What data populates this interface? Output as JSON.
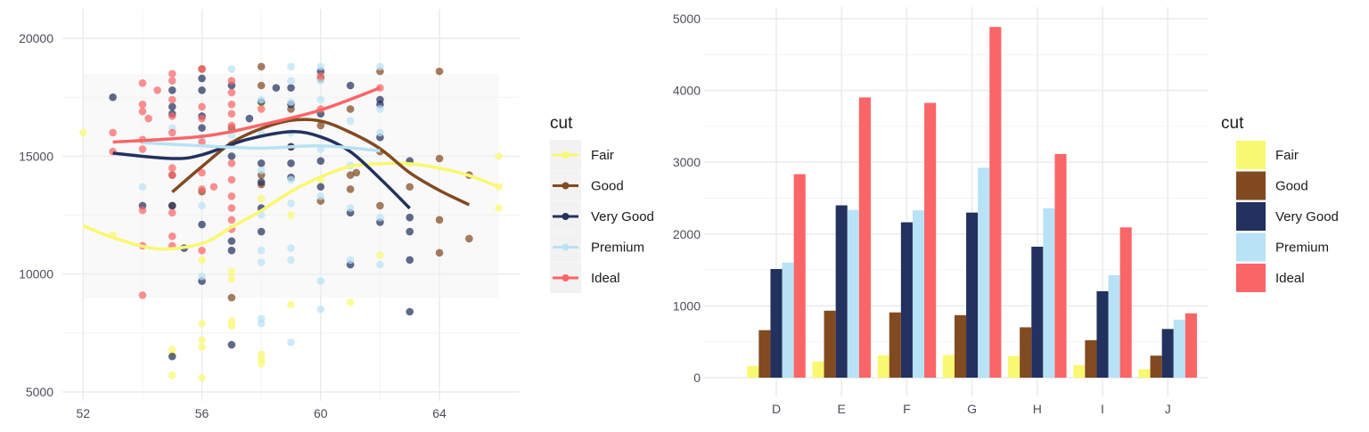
{
  "colors": {
    "Fair": "#F9F871",
    "Good": "#824A21",
    "Very Good": "#23315E",
    "Premium": "#B8E2F5",
    "Ideal": "#FA6567"
  },
  "chart_data": [
    {
      "type": "scatter",
      "title": "",
      "xlabel": "",
      "ylabel": "",
      "xlim": [
        51.3,
        66.7
      ],
      "ylim": [
        4620,
        21250
      ],
      "x_ticks": [
        52,
        56,
        60,
        64
      ],
      "y_ticks": [
        5000,
        10000,
        15000,
        20000
      ],
      "grid": true,
      "legend": {
        "title": "cut",
        "position": "right",
        "entries": [
          "Fair",
          "Good",
          "Very Good",
          "Premium",
          "Ideal"
        ]
      },
      "series": [
        {
          "name": "Fair",
          "points": [
            [
              52,
              16000
            ],
            [
              53,
              11650
            ],
            [
              55,
              6800
            ],
            [
              55,
              6600
            ],
            [
              55,
              5700
            ],
            [
              56,
              10600
            ],
            [
              56,
              7900
            ],
            [
              56,
              7200
            ],
            [
              56,
              6900
            ],
            [
              56,
              5600
            ],
            [
              57,
              10100
            ],
            [
              57,
              9800
            ],
            [
              57,
              8000
            ],
            [
              57,
              7800
            ],
            [
              58,
              6600
            ],
            [
              58,
              6400
            ],
            [
              58,
              6200
            ],
            [
              58,
              13200
            ],
            [
              58,
              17200
            ],
            [
              59,
              12500
            ],
            [
              59,
              8700
            ],
            [
              60,
              14000
            ],
            [
              61,
              8800
            ],
            [
              62,
              10800
            ],
            [
              63,
              14700
            ],
            [
              66,
              15000
            ],
            [
              66,
              13700
            ],
            [
              66,
              12800
            ]
          ],
          "smooth": [
            [
              52,
              12050
            ],
            [
              53,
              11550
            ],
            [
              54.5,
              11070
            ],
            [
              56,
              11300
            ],
            [
              57,
              11990
            ],
            [
              58,
              12690
            ],
            [
              59,
              13500
            ],
            [
              60,
              14120
            ],
            [
              61,
              14570
            ],
            [
              62,
              14680
            ],
            [
              63,
              14680
            ],
            [
              64,
              14490
            ],
            [
              65,
              14180
            ],
            [
              66,
              13700
            ]
          ]
        },
        {
          "name": "Good",
          "points": [
            [
              55,
              14200
            ],
            [
              55,
              12900
            ],
            [
              56,
              18700
            ],
            [
              56,
              13500
            ],
            [
              57,
              9000
            ],
            [
              57,
              16200
            ],
            [
              58,
              18800
            ],
            [
              58,
              14200
            ],
            [
              58,
              13800
            ],
            [
              58,
              18000
            ],
            [
              59,
              17000
            ],
            [
              59,
              15400
            ],
            [
              60,
              18300
            ],
            [
              60,
              16300
            ],
            [
              60,
              13100
            ],
            [
              61,
              17000
            ],
            [
              61,
              14200
            ],
            [
              61,
              13600
            ],
            [
              61.2,
              14300
            ],
            [
              62,
              18600
            ],
            [
              62,
              15200
            ],
            [
              62,
              12900
            ],
            [
              63,
              13700
            ],
            [
              64,
              18600
            ],
            [
              64,
              14900
            ],
            [
              64,
              12300
            ],
            [
              64,
              10900
            ],
            [
              65,
              14200
            ],
            [
              65,
              11500
            ]
          ],
          "smooth": [
            [
              55,
              13480
            ],
            [
              56,
              14560
            ],
            [
              57,
              15570
            ],
            [
              58,
              16170
            ],
            [
              59,
              16520
            ],
            [
              60,
              16490
            ],
            [
              61,
              16010
            ],
            [
              62,
              15320
            ],
            [
              63,
              14300
            ],
            [
              64,
              13550
            ],
            [
              65,
              12940
            ]
          ]
        },
        {
          "name": "Very Good",
          "points": [
            [
              53,
              17500
            ],
            [
              54,
              12900
            ],
            [
              55,
              6500
            ],
            [
              55,
              12900
            ],
            [
              55,
              17100
            ],
            [
              55,
              16800
            ],
            [
              55,
              17800
            ],
            [
              55.4,
              11100
            ],
            [
              56,
              12100
            ],
            [
              56,
              9700
            ],
            [
              56,
              16700
            ],
            [
              56,
              17800
            ],
            [
              56,
              18300
            ],
            [
              56,
              16200
            ],
            [
              57,
              11400
            ],
            [
              57,
              11000
            ],
            [
              57,
              7000
            ],
            [
              57,
              15000
            ],
            [
              57,
              18000
            ],
            [
              57.6,
              16600
            ],
            [
              58,
              17300
            ],
            [
              58,
              14700
            ],
            [
              58,
              13900
            ],
            [
              58,
              12800
            ],
            [
              58,
              11800
            ],
            [
              58.5,
              17900
            ],
            [
              59,
              14700
            ],
            [
              59,
              15400
            ],
            [
              59,
              14100
            ],
            [
              59,
              17900
            ],
            [
              59,
              17200
            ],
            [
              60,
              16800
            ],
            [
              60,
              14800
            ],
            [
              60,
              13700
            ],
            [
              60,
              18600
            ],
            [
              61,
              18000
            ],
            [
              61,
              12600
            ],
            [
              61,
              10400
            ],
            [
              62,
              17400
            ],
            [
              62,
              17200
            ],
            [
              62,
              15800
            ],
            [
              62,
              12200
            ],
            [
              63,
              14800
            ],
            [
              63,
              12400
            ],
            [
              63,
              11800
            ],
            [
              63,
              10600
            ],
            [
              63,
              8400
            ]
          ],
          "smooth": [
            [
              53,
              15130
            ],
            [
              55,
              14900
            ],
            [
              56,
              15060
            ],
            [
              57.5,
              15700
            ],
            [
              59,
              16040
            ],
            [
              60,
              15820
            ],
            [
              61,
              15190
            ],
            [
              62,
              14050
            ],
            [
              63,
              12790
            ]
          ]
        },
        {
          "name": "Premium",
          "points": [
            [
              54,
              13700
            ],
            [
              55,
              16200
            ],
            [
              56,
              12900
            ],
            [
              56,
              9900
            ],
            [
              56,
              15800
            ],
            [
              57,
              18700
            ],
            [
              57,
              15900
            ],
            [
              58,
              17400
            ],
            [
              58,
              16000
            ],
            [
              58,
              14400
            ],
            [
              58,
              12500
            ],
            [
              58,
              11000
            ],
            [
              58,
              10500
            ],
            [
              58,
              8100
            ],
            [
              58,
              7900
            ],
            [
              59,
              18800
            ],
            [
              59,
              18200
            ],
            [
              59,
              17300
            ],
            [
              59,
              16000
            ],
            [
              59,
              14000
            ],
            [
              59,
              13000
            ],
            [
              59,
              11100
            ],
            [
              59,
              10600
            ],
            [
              59,
              7100
            ],
            [
              60,
              18800
            ],
            [
              60,
              18200
            ],
            [
              60,
              17400
            ],
            [
              60,
              15300
            ],
            [
              60,
              13300
            ],
            [
              60,
              9700
            ],
            [
              60,
              8500
            ],
            [
              61,
              16500
            ],
            [
              61,
              14600
            ],
            [
              61,
              12800
            ],
            [
              61,
              10600
            ],
            [
              62,
              18800
            ],
            [
              62,
              17000
            ],
            [
              62,
              16000
            ],
            [
              62,
              12400
            ],
            [
              62,
              10400
            ]
          ],
          "smooth": [
            [
              54,
              15570
            ],
            [
              56,
              15440
            ],
            [
              58,
              15340
            ],
            [
              60,
              15440
            ],
            [
              62,
              15230
            ]
          ]
        },
        {
          "name": "Ideal",
          "points": [
            [
              53,
              16000
            ],
            [
              53,
              15200
            ],
            [
              54,
              18100
            ],
            [
              54,
              17200
            ],
            [
              54,
              16900
            ],
            [
              54,
              15700
            ],
            [
              54,
              15300
            ],
            [
              54,
              12700
            ],
            [
              54,
              11200
            ],
            [
              54,
              9100
            ],
            [
              54.2,
              16600
            ],
            [
              54.5,
              17800
            ],
            [
              55,
              18500
            ],
            [
              55,
              18200
            ],
            [
              55,
              17400
            ],
            [
              55,
              16700
            ],
            [
              55,
              16000
            ],
            [
              55,
              14500
            ],
            [
              55,
              14200
            ],
            [
              55,
              12600
            ],
            [
              55,
              11600
            ],
            [
              55,
              11200
            ],
            [
              56,
              18700
            ],
            [
              56,
              17100
            ],
            [
              56,
              16600
            ],
            [
              56,
              15600
            ],
            [
              56,
              14300
            ],
            [
              56,
              13600
            ],
            [
              56,
              11000
            ],
            [
              56.4,
              13700
            ],
            [
              57,
              18200
            ],
            [
              57,
              17700
            ],
            [
              57,
              17200
            ],
            [
              57,
              16800
            ],
            [
              57,
              16300
            ],
            [
              57,
              15500
            ],
            [
              57,
              14700
            ],
            [
              57,
              14000
            ],
            [
              57,
              13300
            ],
            [
              57,
              12800
            ],
            [
              57,
              12300
            ],
            [
              57,
              11900
            ],
            [
              58,
              17000
            ],
            [
              60,
              17000
            ],
            [
              60,
              18400
            ],
            [
              62,
              17900
            ]
          ],
          "smooth": [
            [
              53,
              15600
            ],
            [
              56,
              15840
            ],
            [
              58,
              16330
            ],
            [
              60,
              16960
            ],
            [
              62,
              17900
            ]
          ]
        }
      ]
    },
    {
      "type": "bar",
      "title": "",
      "xlabel": "",
      "ylabel": "",
      "ylim": [
        -260,
        5160
      ],
      "y_ticks": [
        0,
        1000,
        2000,
        3000,
        4000,
        5000
      ],
      "grid": true,
      "categories": [
        "D",
        "E",
        "F",
        "G",
        "H",
        "I",
        "J"
      ],
      "legend": {
        "title": "cut",
        "position": "right",
        "entries": [
          "Fair",
          "Good",
          "Very Good",
          "Premium",
          "Ideal"
        ]
      },
      "series": [
        {
          "name": "Fair",
          "values": [
            163,
            224,
            312,
            314,
            303,
            175,
            119
          ]
        },
        {
          "name": "Good",
          "values": [
            662,
            933,
            909,
            871,
            702,
            522,
            307
          ]
        },
        {
          "name": "Very Good",
          "values": [
            1513,
            2400,
            2164,
            2299,
            1824,
            1204,
            678
          ]
        },
        {
          "name": "Premium",
          "values": [
            1603,
            2337,
            2331,
            2924,
            2360,
            1428,
            808
          ]
        },
        {
          "name": "Ideal",
          "values": [
            2834,
            3903,
            3826,
            4884,
            3115,
            2093,
            896
          ]
        }
      ]
    }
  ]
}
